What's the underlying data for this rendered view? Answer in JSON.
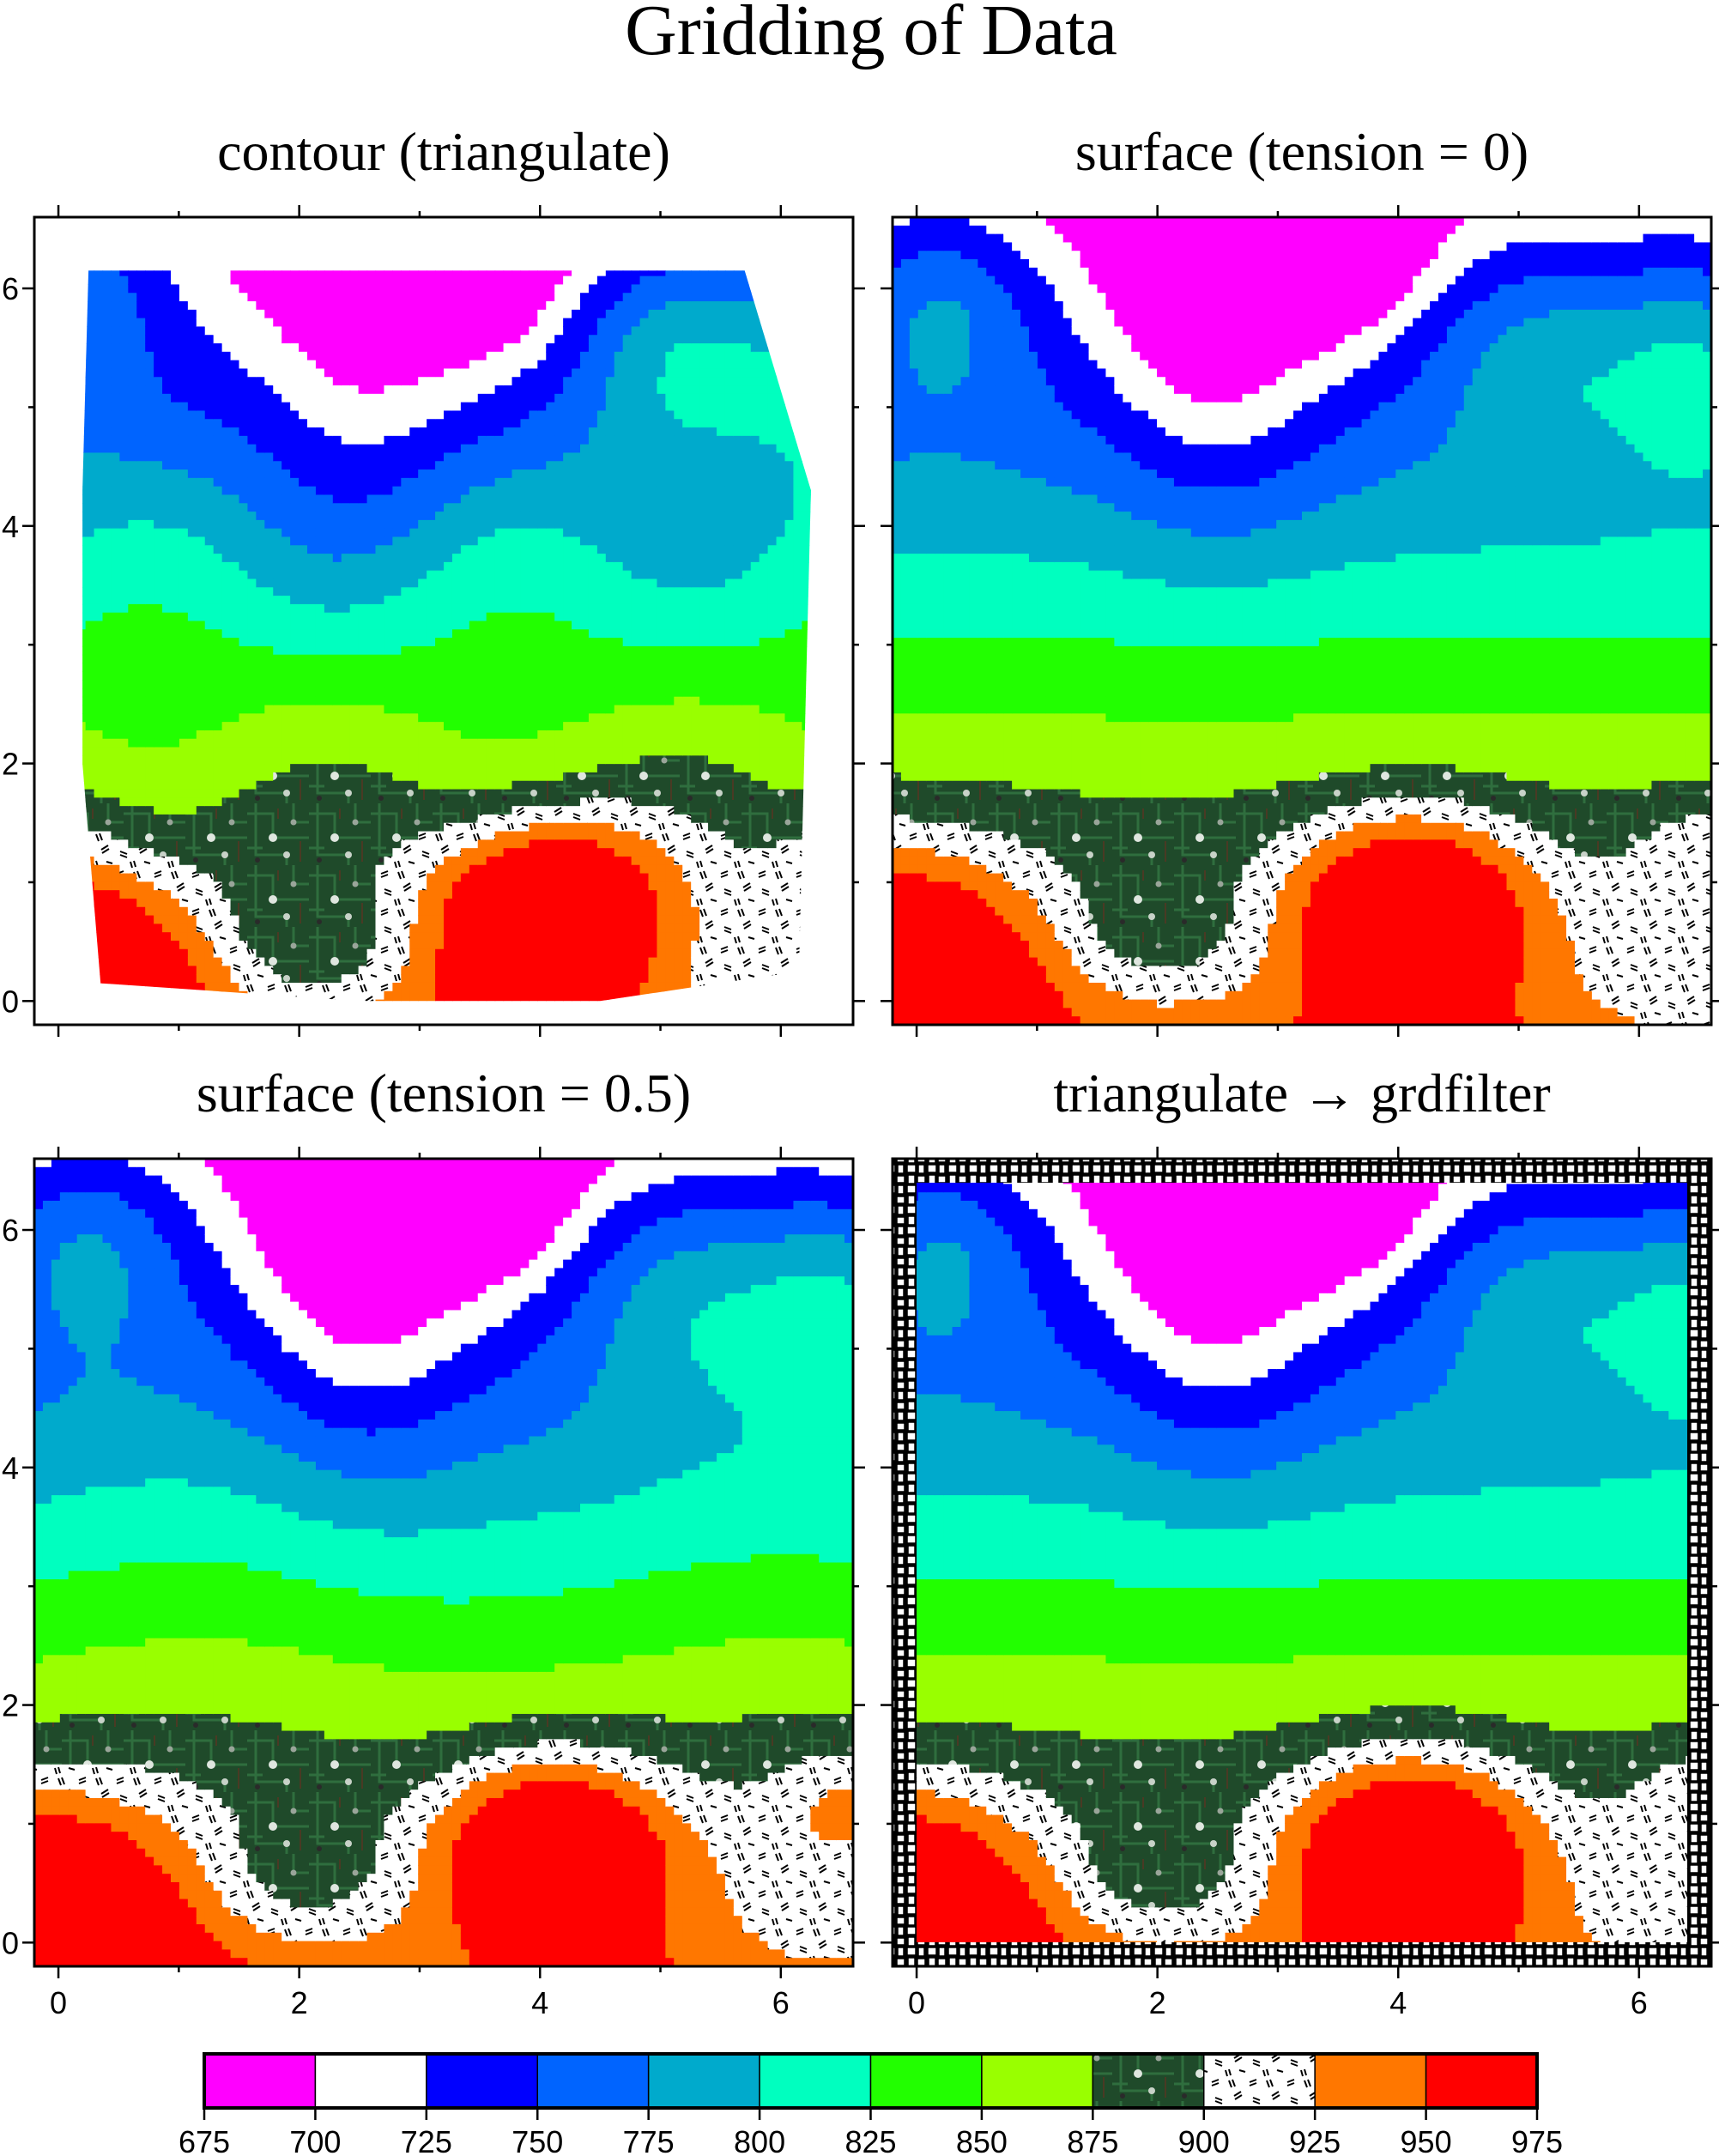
{
  "figure": {
    "title": "Gridding of Data"
  },
  "colors": {
    "bands": [
      "#ff00ff",
      "#ffffff",
      "#0000ff",
      "#0064ff",
      "#00aacc",
      "#00ffbf",
      "#22ff00",
      "#99ff00",
      "pattern:circuit",
      "pattern:dashes",
      "#ff7700",
      "#ff0000"
    ]
  },
  "chart_data": [
    {
      "type": "heatmap",
      "title": "contour (triangulate)",
      "xlim": [
        -0.2,
        6.6
      ],
      "ylim": [
        -0.2,
        6.6
      ],
      "xticks": [],
      "yticks": [
        "0",
        "2",
        "4",
        "6"
      ],
      "clip": "hull"
    },
    {
      "type": "heatmap",
      "title": "surface (tension = 0)",
      "xlim": [
        -0.2,
        6.6
      ],
      "ylim": [
        -0.2,
        6.6
      ],
      "xticks": [],
      "yticks": [],
      "clip": "none"
    },
    {
      "type": "heatmap",
      "title": "surface (tension = 0.5)",
      "xlim": [
        -0.2,
        6.6
      ],
      "ylim": [
        -0.2,
        6.6
      ],
      "xticks": [
        "0",
        "2",
        "4",
        "6"
      ],
      "yticks": [
        "0",
        "2",
        "4",
        "6"
      ],
      "clip": "none"
    },
    {
      "type": "heatmap",
      "title": "triangulate → grdfilter",
      "xlim": [
        -0.2,
        6.6
      ],
      "ylim": [
        -0.2,
        6.6
      ],
      "xticks": [
        "0",
        "2",
        "4",
        "6"
      ],
      "yticks": [],
      "clip": "frame"
    }
  ],
  "colorbar": {
    "ticks": [
      "675",
      "700",
      "725",
      "750",
      "775",
      "800",
      "825",
      "850",
      "875",
      "900",
      "925",
      "950",
      "975"
    ]
  }
}
